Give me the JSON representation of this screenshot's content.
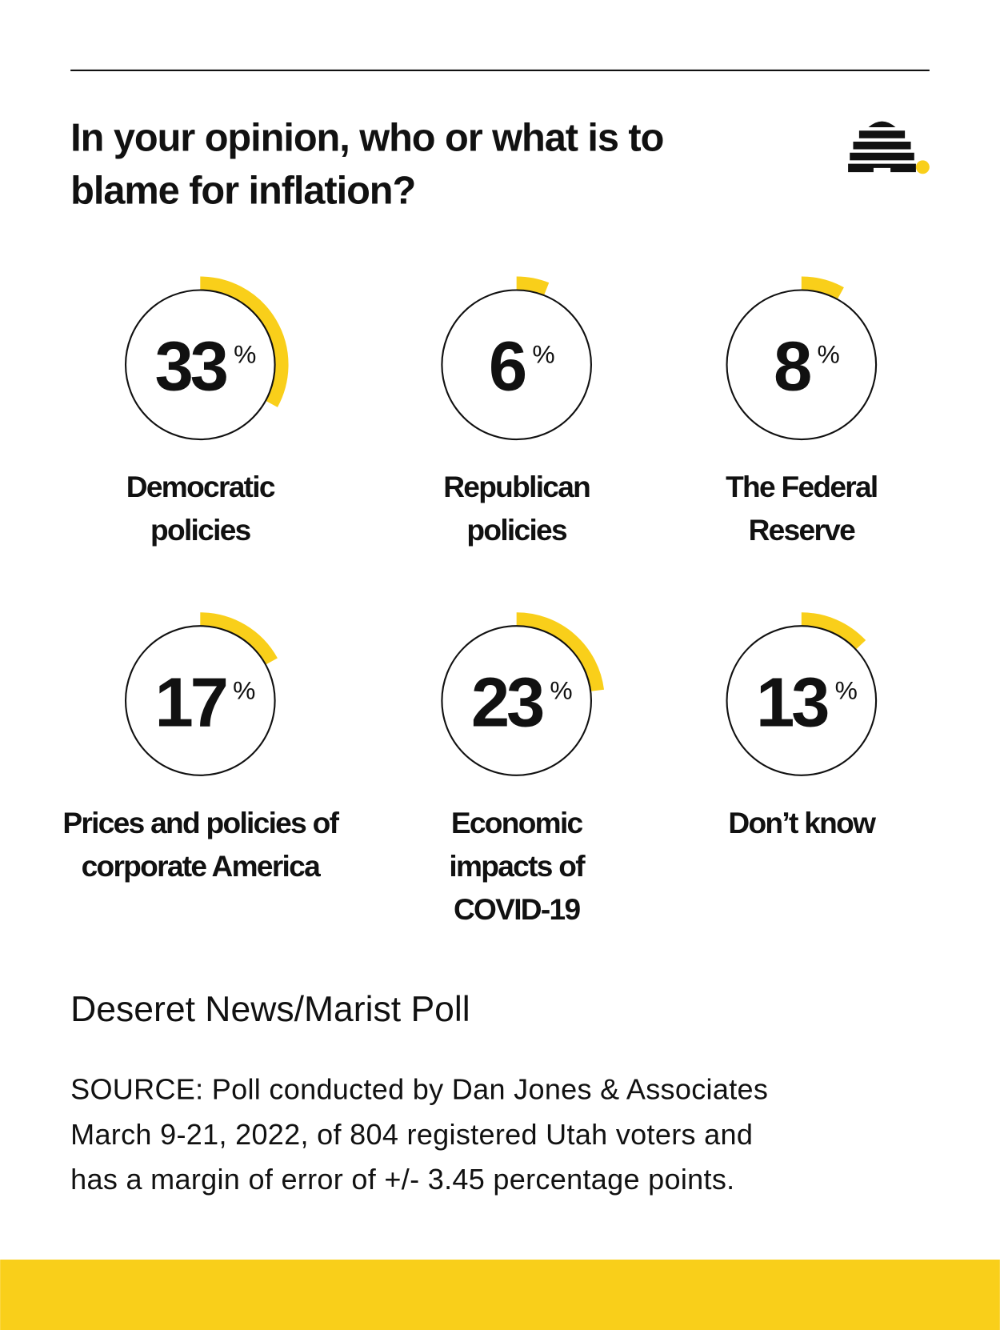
{
  "chart_data": {
    "type": "radial",
    "title": [
      "In your opinion, who or what is to",
      "blame for inflation?"
    ],
    "categories": [
      [
        "Democratic",
        "policies"
      ],
      [
        "Republican",
        "policies"
      ],
      [
        "The Federal",
        "Reserve"
      ],
      [
        "Prices and policies of",
        "corporate America"
      ],
      [
        "Economic",
        "impacts of",
        "COVID-19"
      ],
      [
        "Don’t know"
      ]
    ],
    "values": [
      33,
      6,
      8,
      17,
      23,
      13
    ],
    "unit": "%",
    "color": "#f9cf1a",
    "subtitle": "Deseret News/Marist Poll",
    "source": [
      "SOURCE: Poll conducted by Dan Jones & Associates",
      "March 9-21, 2022, of 804 registered Utah voters and",
      "has a margin of error of +/- 3.45 percentage points."
    ]
  }
}
